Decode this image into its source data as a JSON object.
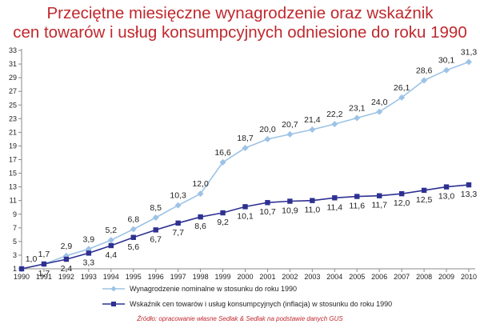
{
  "chart_data": {
    "type": "line",
    "title_line1": "Przeciętne miesięczne wynagrodzenie oraz wskaźnik",
    "title_line2": "cen towarów i usług konsumpcyjnych odniesione do roku 1990",
    "categories": [
      "1990",
      "1991",
      "1992",
      "1993",
      "1994",
      "1995",
      "1996",
      "1997",
      "1998",
      "1999",
      "2000",
      "2001",
      "2002",
      "2003",
      "2004",
      "2005",
      "2006",
      "2007",
      "2008",
      "2009",
      "2010"
    ],
    "series": [
      {
        "name": "Wynagrodzenie nominalne w stosunku do roku 1990",
        "color": "#9dc3e6",
        "values": [
          1.0,
          1.7,
          2.9,
          3.9,
          5.2,
          6.8,
          8.5,
          10.3,
          12.0,
          16.6,
          18.7,
          20.0,
          20.7,
          21.4,
          22.2,
          23.1,
          24.0,
          26.1,
          28.6,
          30.1,
          31.3
        ],
        "labels": [
          "1,0",
          "1,7",
          "2,9",
          "3,9",
          "5,2",
          "6,8",
          "8,5",
          "10,3",
          "12,0",
          "16,6",
          "18,7",
          "20,0",
          "20,7",
          "21,4",
          "22,2",
          "23,1",
          "24,0",
          "26,1",
          "28,6",
          "30,1",
          "31,3"
        ]
      },
      {
        "name": "Wskaźnik cen towarów i usług konsumpcyjnych (inflacja) w stosunku do roku 1990",
        "color": "#2e3192",
        "values": [
          1.0,
          1.7,
          2.4,
          3.3,
          4.4,
          5.6,
          6.7,
          7.7,
          8.6,
          9.2,
          10.1,
          10.7,
          10.9,
          11.0,
          11.4,
          11.6,
          11.7,
          12.0,
          12.5,
          13.0,
          13.3
        ],
        "labels": [
          "",
          "1,7",
          "2,4",
          "3,3",
          "4,4",
          "5,6",
          "6,7",
          "7,7",
          "8,6",
          "9,2",
          "10,1",
          "10,7",
          "10,9",
          "11,0",
          "11,4",
          "11,6",
          "11,7",
          "12,0",
          "12,5",
          "13,0",
          "13,3"
        ]
      }
    ],
    "yticks": [
      1,
      3,
      5,
      7,
      9,
      11,
      13,
      15,
      17,
      19,
      21,
      23,
      25,
      27,
      29,
      31,
      33
    ],
    "ylim": [
      1,
      33
    ],
    "grid": false,
    "legend": "bottom",
    "source": "Źródło: opracowanie własne Sedlak & Sedlak na podstawie danych GUS"
  }
}
